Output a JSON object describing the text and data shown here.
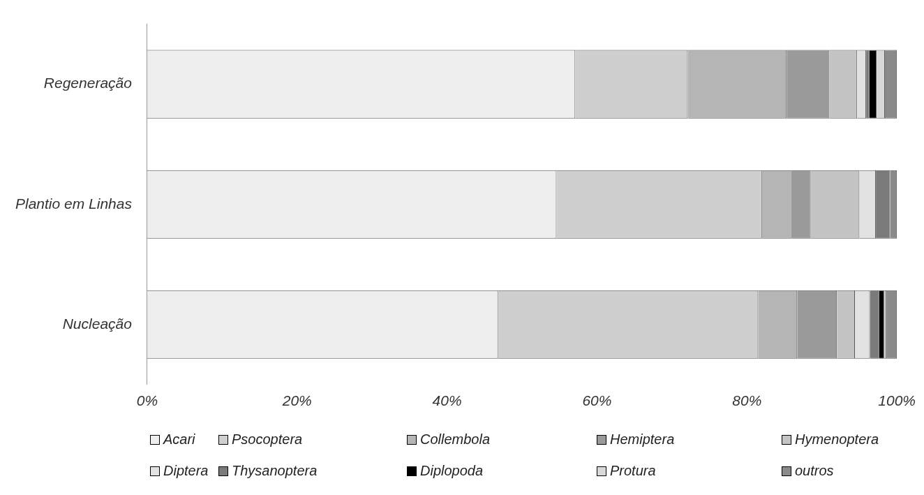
{
  "chart_data": {
    "type": "bar",
    "orientation": "horizontal",
    "stacked": true,
    "categories": [
      "Regeneração",
      "Plantio em Linhas",
      "Nucleação"
    ],
    "series": [
      {
        "name": "Acari",
        "color": "#eeeeee",
        "values": [
          57.1,
          54.6,
          46.8
        ]
      },
      {
        "name": "Psocoptera",
        "color": "#cfcfcf",
        "values": [
          15.0,
          27.4,
          34.7
        ]
      },
      {
        "name": "Collembola",
        "color": "#b5b5b5",
        "values": [
          13.2,
          4.0,
          5.2
        ]
      },
      {
        "name": "Hemiptera",
        "color": "#9a9a9a",
        "values": [
          5.7,
          2.5,
          5.3
        ]
      },
      {
        "name": "Hymenoptera",
        "color": "#c4c4c4",
        "values": [
          3.7,
          6.5,
          2.4
        ]
      },
      {
        "name": "Diptera",
        "color": "#e2e2e2",
        "values": [
          1.2,
          2.2,
          2.0
        ]
      },
      {
        "name": "Thysanoptera",
        "color": "#7a7a7a",
        "values": [
          0.4,
          1.9,
          1.2
        ]
      },
      {
        "name": "Diplopoda",
        "color": "#000000",
        "values": [
          1.0,
          0,
          0.7
        ]
      },
      {
        "name": "Protura",
        "color": "#d8d8d8",
        "values": [
          1.1,
          0,
          0.3
        ]
      },
      {
        "name": "outros",
        "color": "#8a8a8a",
        "values": [
          1.6,
          0.9,
          1.4
        ]
      }
    ],
    "xlim": [
      0,
      100
    ],
    "xticks": [
      {
        "value": 0,
        "label": "0%"
      },
      {
        "value": 20,
        "label": "20%"
      },
      {
        "value": 40,
        "label": "40%"
      },
      {
        "value": 60,
        "label": "60%"
      },
      {
        "value": 80,
        "label": "80%"
      },
      {
        "value": 100,
        "label": "100%"
      }
    ],
    "grid": false,
    "legend": "bottom"
  }
}
